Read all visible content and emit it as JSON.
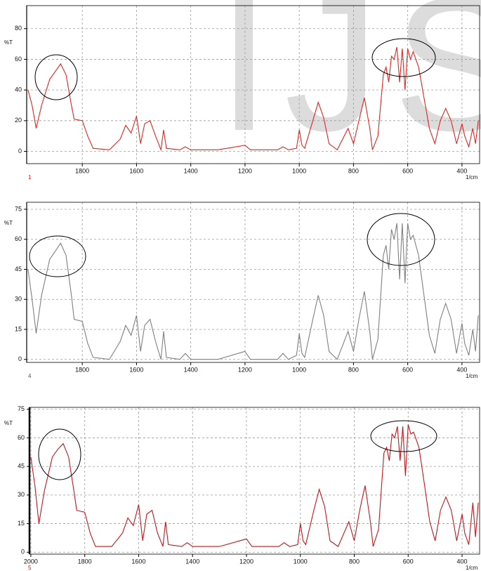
{
  "watermark": "IJS",
  "chart_data": [
    {
      "type": "line",
      "ylabel": "%T",
      "xlabel": "1/cm",
      "sample": "1",
      "color": "#e8231e",
      "xlim": [
        2005,
        335
      ],
      "ylim": [
        -8,
        95
      ],
      "xticks": [
        1800,
        1600,
        1400,
        1200,
        1000,
        800,
        600,
        400
      ],
      "yticks": [
        0,
        20,
        40,
        60,
        80
      ],
      "grid": true,
      "x": [
        2000,
        1985,
        1970,
        1950,
        1920,
        1900,
        1880,
        1860,
        1840,
        1830,
        1800,
        1780,
        1760,
        1700,
        1660,
        1640,
        1620,
        1600,
        1585,
        1570,
        1550,
        1530,
        1510,
        1500,
        1490,
        1440,
        1420,
        1400,
        1300,
        1200,
        1180,
        1080,
        1060,
        1040,
        1010,
        1000,
        990,
        980,
        950,
        930,
        910,
        890,
        860,
        820,
        800,
        780,
        760,
        740,
        730,
        710,
        690,
        680,
        670,
        660,
        650,
        640,
        630,
        620,
        610,
        600,
        590,
        580,
        560,
        540,
        520,
        500,
        480,
        460,
        440,
        420,
        400,
        390,
        375,
        360,
        350,
        340
      ],
      "values": [
        40,
        30,
        15,
        30,
        47,
        52,
        57,
        50,
        30,
        21,
        20,
        10,
        2,
        1,
        8,
        17,
        12,
        23,
        5,
        18,
        20,
        10,
        1,
        14,
        2,
        1,
        3,
        1,
        1,
        4,
        1,
        1,
        3,
        1,
        2,
        14,
        4,
        2,
        20,
        32,
        22,
        5,
        1,
        15,
        5,
        20,
        35,
        15,
        1,
        10,
        50,
        55,
        45,
        62,
        60,
        68,
        45,
        67,
        40,
        67,
        60,
        65,
        55,
        35,
        15,
        5,
        20,
        28,
        20,
        5,
        18,
        10,
        3,
        15,
        5,
        20
      ]
    },
    {
      "type": "line",
      "ylabel": "%T",
      "xlabel": "1/cm",
      "sample": "4",
      "color": "#808080",
      "xlim": [
        2005,
        335
      ],
      "ylim": [
        -1.5,
        78.5
      ],
      "xticks": [
        1800,
        1600,
        1400,
        1200,
        1000,
        800,
        600,
        400
      ],
      "yticks": [
        0,
        15,
        30,
        45,
        60,
        75
      ],
      "grid": true,
      "x": [
        2000,
        1985,
        1970,
        1950,
        1920,
        1900,
        1880,
        1860,
        1840,
        1830,
        1800,
        1780,
        1760,
        1700,
        1660,
        1640,
        1620,
        1600,
        1585,
        1570,
        1550,
        1530,
        1510,
        1500,
        1490,
        1440,
        1420,
        1400,
        1300,
        1200,
        1180,
        1080,
        1060,
        1040,
        1010,
        1000,
        990,
        980,
        950,
        930,
        910,
        890,
        860,
        820,
        800,
        780,
        760,
        740,
        730,
        710,
        690,
        680,
        670,
        660,
        650,
        640,
        630,
        620,
        610,
        600,
        590,
        580,
        560,
        540,
        520,
        500,
        480,
        460,
        440,
        420,
        400,
        390,
        375,
        360,
        350,
        340
      ],
      "values": [
        45,
        30,
        13,
        32,
        50,
        54,
        58,
        52,
        32,
        20,
        19,
        8,
        1,
        0,
        9,
        17,
        12,
        22,
        4,
        17,
        20,
        9,
        0,
        14,
        1,
        0,
        3,
        0,
        0,
        4,
        0,
        0,
        3,
        0,
        2,
        13,
        3,
        1,
        20,
        32,
        22,
        4,
        0,
        14,
        4,
        20,
        34,
        14,
        0,
        10,
        52,
        57,
        45,
        65,
        60,
        68,
        40,
        68,
        38,
        68,
        60,
        62,
        52,
        32,
        12,
        3,
        20,
        28,
        20,
        3,
        18,
        8,
        2,
        15,
        4,
        22
      ]
    },
    {
      "type": "line",
      "ylabel": "%T",
      "xlabel": "1/cm",
      "sample": "5",
      "color": "#c4161c",
      "xlim": [
        2005,
        335
      ],
      "ylim": [
        -1,
        76
      ],
      "xticks": [
        2000,
        1800,
        1600,
        1400,
        1200,
        1000,
        800,
        600,
        400
      ],
      "yticks": [
        0,
        15,
        30,
        45,
        60,
        75
      ],
      "grid": true,
      "x": [
        2000,
        1985,
        1970,
        1950,
        1920,
        1900,
        1880,
        1860,
        1840,
        1830,
        1800,
        1780,
        1760,
        1700,
        1660,
        1640,
        1620,
        1600,
        1585,
        1570,
        1550,
        1530,
        1510,
        1500,
        1490,
        1440,
        1420,
        1400,
        1300,
        1200,
        1180,
        1080,
        1060,
        1040,
        1010,
        1000,
        990,
        980,
        950,
        930,
        910,
        890,
        860,
        820,
        800,
        780,
        760,
        740,
        730,
        710,
        690,
        680,
        670,
        660,
        650,
        640,
        630,
        620,
        610,
        600,
        590,
        580,
        560,
        540,
        520,
        500,
        480,
        460,
        440,
        420,
        400,
        390,
        375,
        360,
        350,
        340
      ],
      "values": [
        50,
        35,
        15,
        32,
        50,
        54,
        57,
        50,
        32,
        22,
        21,
        10,
        3,
        3,
        10,
        18,
        14,
        25,
        6,
        20,
        22,
        10,
        3,
        16,
        4,
        3,
        5,
        3,
        3,
        7,
        3,
        3,
        5,
        3,
        4,
        15,
        6,
        4,
        22,
        33,
        24,
        6,
        3,
        16,
        6,
        22,
        35,
        16,
        3,
        12,
        52,
        55,
        48,
        62,
        60,
        66,
        48,
        66,
        40,
        67,
        62,
        63,
        55,
        36,
        16,
        6,
        22,
        29,
        22,
        6,
        20,
        10,
        4,
        26,
        8,
        26
      ]
    }
  ]
}
